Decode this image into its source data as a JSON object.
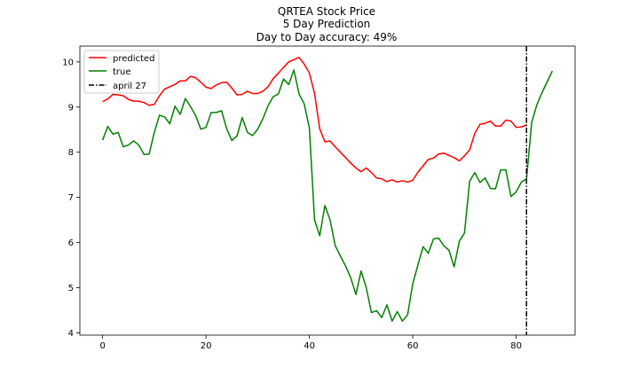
{
  "chart_data": {
    "type": "line",
    "title_lines": [
      "QRTEA Stock Price",
      "5 Day Prediction",
      "Day to Day accuracy: 49%"
    ],
    "xlabel": "",
    "ylabel": "",
    "xlim": [
      -4.4,
      91.4
    ],
    "ylim": [
      3.95,
      10.35
    ],
    "xticks": [
      0,
      20,
      40,
      60,
      80
    ],
    "yticks": [
      4,
      5,
      6,
      7,
      8,
      9,
      10
    ],
    "grid": false,
    "legend_placement": "top-left",
    "series": [
      {
        "name": "predicted",
        "color": "#ff0000",
        "style": "solid",
        "x_start": 0,
        "values": [
          9.12,
          9.18,
          9.28,
          9.27,
          9.25,
          9.17,
          9.13,
          9.13,
          9.1,
          9.04,
          9.06,
          9.25,
          9.4,
          9.45,
          9.5,
          9.58,
          9.58,
          9.68,
          9.65,
          9.55,
          9.44,
          9.41,
          9.49,
          9.54,
          9.55,
          9.42,
          9.27,
          9.28,
          9.35,
          9.3,
          9.3,
          9.35,
          9.45,
          9.63,
          9.75,
          9.88,
          10.0,
          10.05,
          10.1,
          9.95,
          9.75,
          9.3,
          8.52,
          8.23,
          8.25,
          8.12,
          8.0,
          7.88,
          7.76,
          7.65,
          7.57,
          7.65,
          7.55,
          7.43,
          7.41,
          7.35,
          7.39,
          7.34,
          7.37,
          7.34,
          7.38,
          7.56,
          7.7,
          7.84,
          7.87,
          7.96,
          7.98,
          7.93,
          7.88,
          7.81,
          7.92,
          8.05,
          8.42,
          8.62,
          8.64,
          8.69,
          8.58,
          8.58,
          8.71,
          8.69,
          8.55,
          8.56,
          8.6
        ]
      },
      {
        "name": "true",
        "color": "#008000",
        "style": "solid",
        "x_start": 0,
        "values": [
          8.27,
          8.57,
          8.4,
          8.44,
          8.12,
          8.16,
          8.25,
          8.16,
          7.95,
          7.96,
          8.44,
          8.82,
          8.78,
          8.63,
          9.02,
          8.84,
          9.19,
          9.01,
          8.81,
          8.51,
          8.55,
          8.88,
          8.88,
          8.92,
          8.52,
          8.26,
          8.36,
          8.77,
          8.44,
          8.37,
          8.51,
          8.74,
          9.03,
          9.23,
          9.29,
          9.62,
          9.5,
          9.82,
          9.29,
          9.07,
          8.53,
          6.5,
          6.15,
          6.82,
          6.5,
          5.93,
          5.7,
          5.48,
          5.22,
          4.85,
          5.37,
          5.0,
          4.45,
          4.49,
          4.34,
          4.62,
          4.26,
          4.47,
          4.26,
          4.4,
          5.09,
          5.51,
          5.91,
          5.76,
          6.08,
          6.1,
          5.93,
          5.83,
          5.46,
          6.03,
          6.21,
          7.36,
          7.55,
          7.33,
          7.43,
          7.2,
          7.19,
          7.61,
          7.61,
          7.02,
          7.12,
          7.34,
          7.41,
          8.66,
          9.05,
          9.32,
          9.56,
          9.8
        ]
      }
    ],
    "vline": {
      "name": "april 27",
      "x": 82,
      "color": "#000000",
      "style": "dashdot"
    },
    "legend": [
      "predicted",
      "true",
      "april 27"
    ]
  }
}
